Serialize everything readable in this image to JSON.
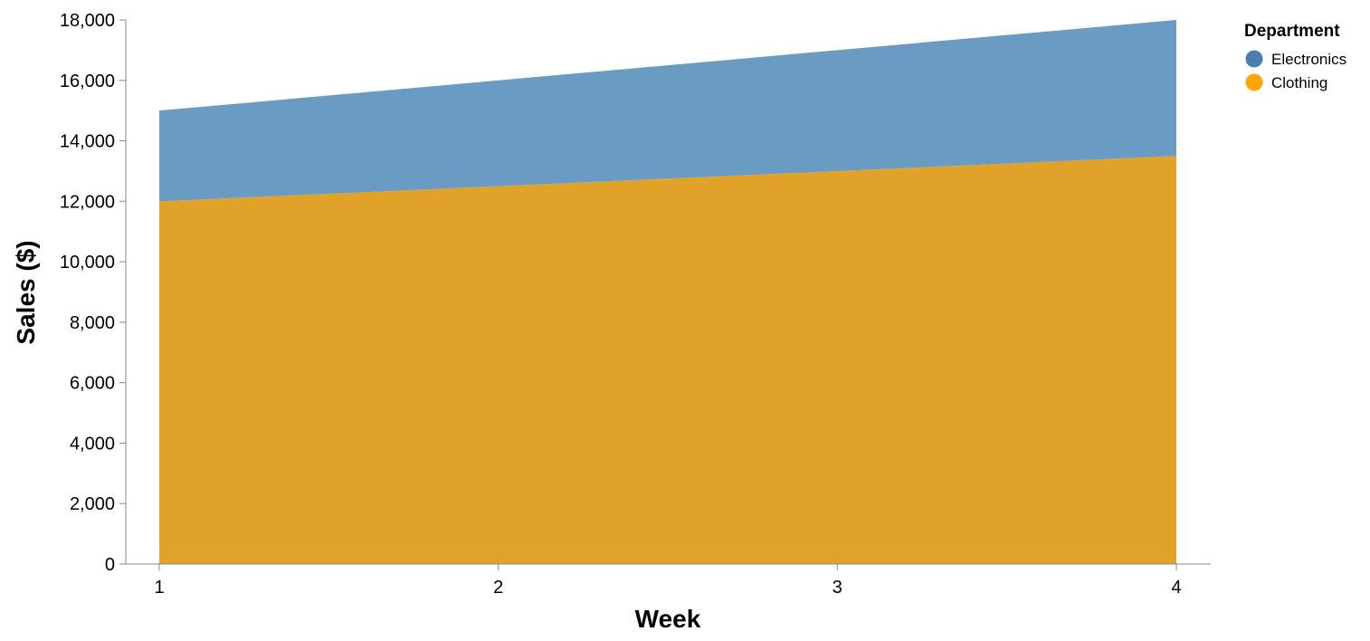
{
  "chart_data": {
    "type": "area",
    "stacked": true,
    "x": [
      1,
      2,
      3,
      4
    ],
    "x_ticks": [
      1,
      2,
      3,
      4
    ],
    "x_tick_labels": [
      "1",
      "2",
      "3",
      "4"
    ],
    "series": [
      {
        "name": "Clothing",
        "values": [
          12000,
          12500,
          13000,
          13500
        ],
        "color": "#e0a228",
        "legend_color": "#ffa600"
      },
      {
        "name": "Electronics",
        "values": [
          3000,
          3500,
          4000,
          4500
        ],
        "color": "#6a9bc3",
        "legend_color": "#4a7eb0"
      }
    ],
    "xlabel": "Week",
    "ylabel": "Sales ($)",
    "ylim": [
      0,
      18000
    ],
    "y_ticks": [
      0,
      2000,
      4000,
      6000,
      8000,
      10000,
      12000,
      14000,
      16000,
      18000
    ],
    "y_tick_labels": [
      "0",
      "2,000",
      "4,000",
      "6,000",
      "8,000",
      "10,000",
      "12,000",
      "14,000",
      "16,000",
      "18,000"
    ],
    "grid": false,
    "legend": {
      "title": "Department",
      "position": "top-right",
      "entries": [
        "Electronics",
        "Clothing"
      ]
    }
  }
}
